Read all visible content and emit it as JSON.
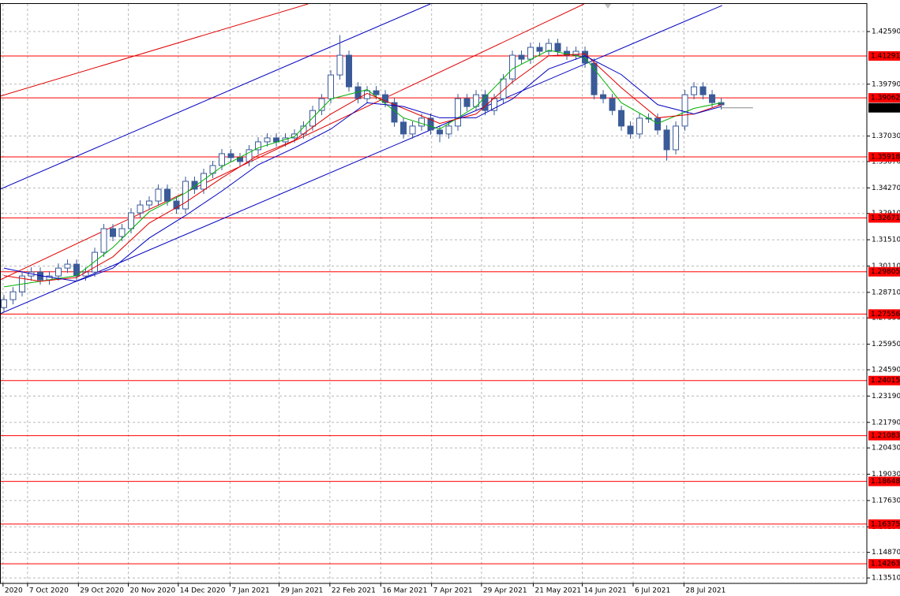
{
  "chart_data": {
    "type": "candlestick",
    "candle_color": "#3a5a98",
    "open": [
      1.279,
      1.2832,
      1.2874,
      1.2958,
      1.2979,
      1.2937,
      1.2958,
      1.3,
      1.3021,
      1.2958,
      1.2979,
      1.3084,
      1.321,
      1.3168,
      1.321,
      1.3294,
      1.3336,
      1.3357,
      1.342,
      1.3357,
      1.3315,
      1.3462,
      1.342,
      1.3504,
      1.3546,
      1.3609,
      1.3588,
      1.3567,
      1.363,
      1.3672,
      1.3693,
      1.3672,
      1.3693,
      1.3714,
      1.3756,
      1.3839,
      1.3902,
      1.4028,
      1.4133,
      1.3965,
      1.3902,
      1.3944,
      1.3923,
      1.3881,
      1.3777,
      1.3714,
      1.3756,
      1.3798,
      1.3735,
      1.3714,
      1.3756,
      1.3902,
      1.386,
      1.3923,
      1.3839,
      1.3902,
      1.4007,
      1.4133,
      1.4112,
      1.4175,
      1.4154,
      1.4196,
      1.4154,
      1.4133,
      1.4154,
      1.4091,
      1.3923,
      1.3902,
      1.3839,
      1.3756,
      1.3714,
      1.3798,
      1.3798,
      1.3735,
      1.363,
      1.3756,
      1.3923,
      1.3965,
      1.3923,
      1.3881
    ],
    "high": [
      1.2857,
      1.2899,
      1.2983,
      1.3004,
      1.3004,
      1.2983,
      1.3025,
      1.3046,
      1.3046,
      1.3004,
      1.3109,
      1.3235,
      1.3235,
      1.3235,
      1.3319,
      1.3361,
      1.3382,
      1.3445,
      1.3445,
      1.3382,
      1.3487,
      1.3487,
      1.3529,
      1.3571,
      1.3634,
      1.3634,
      1.3613,
      1.3655,
      1.3697,
      1.3718,
      1.3718,
      1.3718,
      1.3739,
      1.3781,
      1.3864,
      1.3927,
      1.4053,
      1.424,
      1.4158,
      1.399,
      1.3969,
      1.3969,
      1.3948,
      1.3906,
      1.3802,
      1.3781,
      1.3823,
      1.3823,
      1.376,
      1.3781,
      1.3927,
      1.3927,
      1.3948,
      1.3948,
      1.3927,
      1.4032,
      1.4158,
      1.4158,
      1.42,
      1.42,
      1.4221,
      1.4221,
      1.4179,
      1.4179,
      1.4179,
      1.4116,
      1.3948,
      1.3927,
      1.3864,
      1.3781,
      1.3823,
      1.3823,
      1.3823,
      1.376,
      1.3781,
      1.3948,
      1.399,
      1.399,
      1.3948,
      1.3906
    ],
    "low": [
      1.2765,
      1.2807,
      1.2849,
      1.2933,
      1.2912,
      1.2912,
      1.2933,
      1.2975,
      1.2933,
      1.2933,
      1.2954,
      1.3059,
      1.3143,
      1.3143,
      1.3185,
      1.3269,
      1.3311,
      1.3332,
      1.3332,
      1.329,
      1.329,
      1.3395,
      1.3395,
      1.3479,
      1.3521,
      1.3563,
      1.3542,
      1.3542,
      1.3605,
      1.3647,
      1.3647,
      1.3647,
      1.3668,
      1.3689,
      1.3731,
      1.3814,
      1.3877,
      1.4003,
      1.394,
      1.3877,
      1.3877,
      1.3898,
      1.3856,
      1.3752,
      1.3689,
      1.3689,
      1.3731,
      1.371,
      1.367,
      1.3689,
      1.3731,
      1.3835,
      1.3835,
      1.3814,
      1.3814,
      1.3877,
      1.3982,
      1.4087,
      1.4087,
      1.4129,
      1.4129,
      1.4129,
      1.4108,
      1.4108,
      1.4066,
      1.3898,
      1.3877,
      1.3814,
      1.3731,
      1.3689,
      1.3689,
      1.3773,
      1.371,
      1.3572,
      1.3605,
      1.3731,
      1.3898,
      1.3898,
      1.3856,
      1.3844
    ],
    "close": [
      1.2832,
      1.2874,
      1.2958,
      1.2979,
      1.2937,
      1.2958,
      1.3,
      1.3021,
      1.2958,
      1.2979,
      1.3084,
      1.321,
      1.3168,
      1.321,
      1.3294,
      1.3336,
      1.3357,
      1.342,
      1.3357,
      1.3315,
      1.3462,
      1.342,
      1.3504,
      1.3546,
      1.3609,
      1.3588,
      1.3567,
      1.363,
      1.3672,
      1.3693,
      1.3672,
      1.3693,
      1.3714,
      1.3756,
      1.3839,
      1.3902,
      1.4028,
      1.4133,
      1.3965,
      1.3902,
      1.3944,
      1.3923,
      1.3881,
      1.3777,
      1.3714,
      1.3756,
      1.3798,
      1.3735,
      1.3714,
      1.3756,
      1.3902,
      1.386,
      1.3923,
      1.3839,
      1.3902,
      1.4007,
      1.4133,
      1.4112,
      1.4175,
      1.4154,
      1.4196,
      1.4154,
      1.4133,
      1.4154,
      1.4091,
      1.3923,
      1.3902,
      1.3839,
      1.3756,
      1.3714,
      1.3798,
      1.3798,
      1.3735,
      1.363,
      1.3756,
      1.3923,
      1.3965,
      1.3923,
      1.3881,
      1.3869
    ],
    "xlim": [
      -0.435,
      95.04
    ],
    "ylim": [
      1.1322,
      1.4406
    ],
    "xticks": [
      {
        "value": -0.1,
        "label": "2020"
      },
      {
        "value": 2.6,
        "label": "7 Oct 2020"
      },
      {
        "value": 8.2,
        "label": "29 Oct 2020"
      },
      {
        "value": 13.7,
        "label": "20 Nov 2020"
      },
      {
        "value": 19.2,
        "label": "14 Dec 2020"
      },
      {
        "value": 24.9,
        "label": "7 Jan 2021"
      },
      {
        "value": 30.3,
        "label": "29 Jan 2021"
      },
      {
        "value": 35.9,
        "label": "22 Feb 2021"
      },
      {
        "value": 41.5,
        "label": "16 Mar 2021"
      },
      {
        "value": 47.1,
        "label": "7 Apr 2021"
      },
      {
        "value": 52.6,
        "label": "29 Apr 2021"
      },
      {
        "value": 58.3,
        "label": "21 May 2021"
      },
      {
        "value": 63.7,
        "label": "14 Jun 2021"
      },
      {
        "value": 69.3,
        "label": "6 Jul 2021"
      },
      {
        "value": 74.9,
        "label": "28 Jul 2021"
      }
    ],
    "yticks": [
      {
        "value": 1.4259,
        "label": "1.42590"
      },
      {
        "value": 1.3979,
        "label": "1.39790"
      },
      {
        "value": 1.3703,
        "label": "1.37030"
      },
      {
        "value": 1.3567,
        "label": "1.35670"
      },
      {
        "value": 1.3427,
        "label": "1.34270"
      },
      {
        "value": 1.3291,
        "label": "1.32910"
      },
      {
        "value": 1.3151,
        "label": "1.31510"
      },
      {
        "value": 1.3011,
        "label": "1.30110"
      },
      {
        "value": 1.2871,
        "label": "1.28710"
      },
      {
        "value": 1.2735,
        "label": "1.27350"
      },
      {
        "value": 1.2595,
        "label": "1.25950"
      },
      {
        "value": 1.2459,
        "label": "1.24590"
      },
      {
        "value": 1.2319,
        "label": "1.23190"
      },
      {
        "value": 1.2179,
        "label": "1.21790"
      },
      {
        "value": 1.2043,
        "label": "1.20430"
      },
      {
        "value": 1.1903,
        "label": "1.19030"
      },
      {
        "value": 1.1763,
        "label": "1.17630"
      },
      {
        "value": 1.1623,
        "label": "1.16230"
      },
      {
        "value": 1.1487,
        "label": "1.14870"
      },
      {
        "value": 1.1351,
        "label": "1.13510"
      }
    ],
    "grid": true,
    "moving_averages": {
      "x": [
        0,
        4,
        8,
        12,
        16,
        20,
        24,
        28,
        32,
        36,
        40,
        44,
        48,
        52,
        56,
        60,
        64,
        68,
        72,
        76,
        79
      ],
      "lines": [
        {
          "color": "#00b000",
          "values": [
            1.29,
            1.293,
            1.296,
            1.311,
            1.33,
            1.34,
            1.354,
            1.364,
            1.37,
            1.39,
            1.395,
            1.38,
            1.374,
            1.386,
            1.406,
            1.416,
            1.412,
            1.388,
            1.377,
            1.385,
            1.388
          ]
        },
        {
          "color": "#e00000",
          "values": [
            1.296,
            1.293,
            1.295,
            1.306,
            1.324,
            1.335,
            1.348,
            1.36,
            1.368,
            1.382,
            1.393,
            1.385,
            1.377,
            1.382,
            1.399,
            1.413,
            1.414,
            1.396,
            1.38,
            1.382,
            1.387
          ]
        },
        {
          "color": "#0000c0",
          "values": [
            1.3,
            1.296,
            1.293,
            1.3,
            1.316,
            1.328,
            1.341,
            1.355,
            1.364,
            1.374,
            1.388,
            1.386,
            1.38,
            1.38,
            1.39,
            1.406,
            1.413,
            1.403,
            1.387,
            1.382,
            1.386
          ]
        }
      ]
    },
    "trendlines": [
      {
        "color": "#0000c0",
        "x": [
          -0.435,
          46.96
        ],
        "values": [
          1.342,
          1.4406
        ]
      },
      {
        "color": "#0000c0",
        "x": [
          -0.435,
          79.1
        ],
        "values": [
          1.2757,
          1.4398
        ]
      },
      {
        "color": "#e00000",
        "x": [
          -0.435,
          33.5
        ],
        "values": [
          1.3915,
          1.4406
        ]
      },
      {
        "color": "#e00000",
        "x": [
          -0.435,
          63.9
        ],
        "values": [
          1.2937,
          1.4406
        ]
      }
    ],
    "levels": {
      "color": "#ff0000",
      "values": [
        1.41291,
        1.39062,
        1.35918,
        1.32671,
        1.29805,
        1.27556,
        1.24015,
        1.21083,
        1.18648,
        1.16375,
        1.14263
      ]
    },
    "current_price": 1.38533
  }
}
